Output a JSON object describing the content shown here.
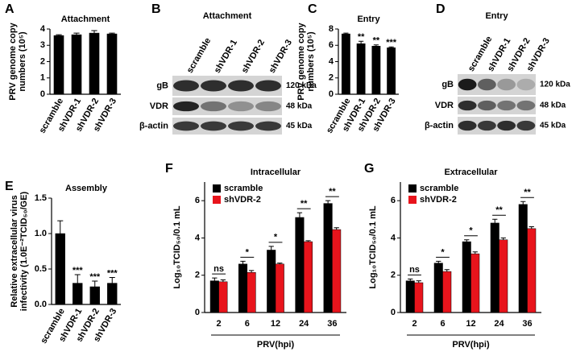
{
  "chart_data": [
    {
      "panel": "A",
      "type": "bar",
      "title": "Attachment",
      "ylabel": [
        "PRV genome copy",
        "numbers (10⁵)"
      ],
      "categories": [
        "scramble",
        "shVDR-1",
        "shVDR-2",
        "shVDR-3"
      ],
      "values": [
        3.6,
        3.65,
        3.75,
        3.7
      ],
      "errors": [
        0.05,
        0.1,
        0.15,
        0.05
      ],
      "color": "#000000",
      "ylim": [
        0,
        4
      ],
      "yticks": [
        0,
        1,
        2,
        3,
        4
      ]
    },
    {
      "panel": "C",
      "type": "bar",
      "title": "Entry",
      "ylabel": [
        "PRV genome copy",
        "numbers (10⁵)"
      ],
      "categories": [
        "scramble",
        "shVDR-1",
        "shVDR-2",
        "shVDR-3"
      ],
      "values": [
        7.4,
        6.2,
        5.9,
        5.7
      ],
      "errors": [
        0.1,
        0.3,
        0.15,
        0.1
      ],
      "color": "#000000",
      "annotations": [
        null,
        "**",
        "**",
        "***"
      ],
      "ylim": [
        0,
        8
      ],
      "yticks": [
        0,
        2,
        4,
        6,
        8
      ]
    },
    {
      "panel": "E",
      "type": "bar",
      "title": "Assembly",
      "ylabel": [
        "Relative extracellular virus",
        "infectivity (1.0E⁻²TCID₅₀/GE)"
      ],
      "categories": [
        "scramble",
        "shVDR-1",
        "shVDR-2",
        "shVDR-3"
      ],
      "values": [
        1.0,
        0.3,
        0.25,
        0.3
      ],
      "errors": [
        0.18,
        0.12,
        0.08,
        0.08
      ],
      "color": "#000000",
      "annotations": [
        null,
        "***",
        "***",
        "***"
      ],
      "ylim": [
        0,
        1.5
      ],
      "yticks": [
        {
          "value": 0,
          "label": "0.0"
        },
        {
          "value": 0.5,
          "label": "0.5"
        },
        {
          "value": 1,
          "label": "1.0"
        },
        {
          "value": 1.5,
          "label": "1.5"
        }
      ]
    },
    {
      "panel": "F",
      "type": "bar",
      "title": "Intracellular",
      "ylabel": [
        "Log₁₀TCID₅₀/0.1 mL"
      ],
      "xlabel": "PRV(hpi)",
      "categories": [
        "2",
        "6",
        "12",
        "24",
        "36"
      ],
      "series": [
        {
          "name": "scramble",
          "color": "#000000",
          "values": [
            1.7,
            2.6,
            3.35,
            5.1,
            5.85
          ],
          "errors": [
            0.15,
            0.15,
            0.2,
            0.25,
            0.15
          ]
        },
        {
          "name": "shVDR-2",
          "color": "#e8141c",
          "values": [
            1.65,
            2.15,
            2.6,
            3.8,
            4.45
          ],
          "errors": [
            0.1,
            0.1,
            0.05,
            0.05,
            0.1
          ]
        }
      ],
      "annotations": [
        "ns",
        "*",
        "*",
        "**",
        "**"
      ],
      "ylim": [
        0,
        7
      ],
      "yticks": [
        0,
        2,
        4,
        6
      ]
    },
    {
      "panel": "G",
      "type": "bar",
      "title": "Extracellular",
      "ylabel": [
        "Log₁₀TCID₅₀/0.1 mL"
      ],
      "xlabel": "PRV(hpi)",
      "categories": [
        "2",
        "6",
        "12",
        "24",
        "36"
      ],
      "series": [
        {
          "name": "scramble",
          "color": "#000000",
          "values": [
            1.7,
            2.65,
            3.8,
            4.8,
            5.8
          ],
          "errors": [
            0.1,
            0.1,
            0.1,
            0.2,
            0.15
          ]
        },
        {
          "name": "shVDR-2",
          "color": "#e8141c",
          "values": [
            1.6,
            2.2,
            3.15,
            3.9,
            4.5
          ],
          "errors": [
            0.1,
            0.1,
            0.1,
            0.1,
            0.1
          ]
        }
      ],
      "annotations": [
        "ns",
        "*",
        "*",
        "**",
        "**"
      ],
      "ylim": [
        0,
        7
      ],
      "yticks": [
        0,
        2,
        4,
        6
      ]
    }
  ],
  "blots": [
    {
      "panel": "B",
      "title": "Attachment",
      "lanes": [
        "scramble",
        "shVDR-1",
        "shVDR-2",
        "shVDR-3"
      ],
      "rows": [
        {
          "label": "gB",
          "size": "120 kDa"
        },
        {
          "label": "VDR",
          "size": "48 kDa"
        },
        {
          "label": "β-actin",
          "size": "45 kDa"
        }
      ]
    },
    {
      "panel": "D",
      "title": "Entry",
      "lanes": [
        "scramble",
        "shVDR-1",
        "shVDR-2",
        "shVDR-3"
      ],
      "rows": [
        {
          "label": "gB",
          "size": "120 kDa"
        },
        {
          "label": "VDR",
          "size": "48 kDa"
        },
        {
          "label": "β-actin",
          "size": "45 kDa"
        }
      ]
    }
  ]
}
